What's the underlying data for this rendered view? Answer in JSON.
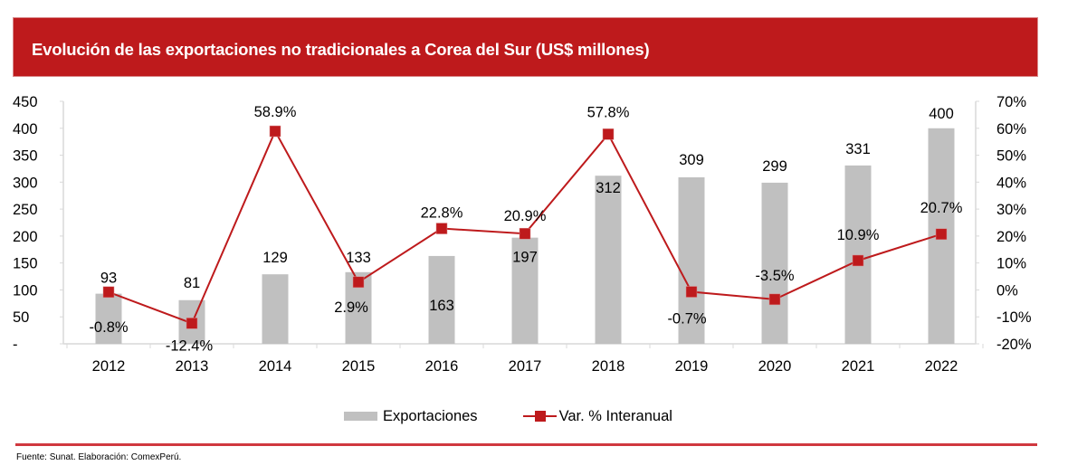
{
  "header": {
    "title": "Evolución de las exportaciones no tradicionales a Corea del Sur (US$ millones)"
  },
  "footer": {
    "source": "Fuente: Sunat. Elaboración: ComexPerú."
  },
  "colors": {
    "banner": "#BE1A1C",
    "bar": "#C0C0C0",
    "line": "#BE1A1C",
    "axis": "#D9D9D9",
    "footer_line": "#D0383F"
  },
  "chart_data": {
    "type": "bar",
    "title": "Evolución de las exportaciones no tradicionales a Corea del Sur (US$ millones)",
    "categories": [
      "2012",
      "2013",
      "2014",
      "2015",
      "2016",
      "2017",
      "2018",
      "2019",
      "2020",
      "2021",
      "2022"
    ],
    "series": [
      {
        "name": "Exportaciones",
        "type": "bar",
        "axis": "left",
        "values": [
          93,
          81,
          129,
          133,
          163,
          197,
          312,
          309,
          299,
          331,
          400
        ],
        "labels": [
          "93",
          "81",
          "129",
          "133",
          "163",
          "197",
          "312",
          "309",
          "299",
          "331",
          "400"
        ]
      },
      {
        "name": "Var. % Interanual",
        "type": "line",
        "axis": "right",
        "marker": "square",
        "values": [
          -0.8,
          -12.4,
          58.9,
          2.9,
          22.8,
          20.9,
          57.8,
          -0.7,
          -3.5,
          10.9,
          20.7
        ],
        "labels": [
          "-0.8%",
          "-12.4%",
          "58.9%",
          "2.9%",
          "22.8%",
          "20.9%",
          "57.8%",
          "-0.7%",
          "-3.5%",
          "10.9%",
          "20.7%"
        ]
      }
    ],
    "y_left": {
      "range": [
        0,
        450
      ],
      "ticks": [
        0,
        50,
        100,
        150,
        200,
        250,
        300,
        350,
        400,
        450
      ],
      "tick_labels": [
        "-",
        "50",
        "100",
        "150",
        "200",
        "250",
        "300",
        "350",
        "400",
        "450"
      ]
    },
    "y_right": {
      "range": [
        -20,
        70
      ],
      "ticks": [
        -20,
        -10,
        0,
        10,
        20,
        30,
        40,
        50,
        60,
        70
      ],
      "tick_labels": [
        "-20%",
        "-10%",
        "0%",
        "10%",
        "20%",
        "30%",
        "40%",
        "50%",
        "60%",
        "70%"
      ]
    },
    "xlabel": "",
    "ylabel": "",
    "grid": false,
    "legend": {
      "position": "bottom",
      "entries": [
        "Exportaciones",
        "Var. % Interanual"
      ]
    }
  }
}
